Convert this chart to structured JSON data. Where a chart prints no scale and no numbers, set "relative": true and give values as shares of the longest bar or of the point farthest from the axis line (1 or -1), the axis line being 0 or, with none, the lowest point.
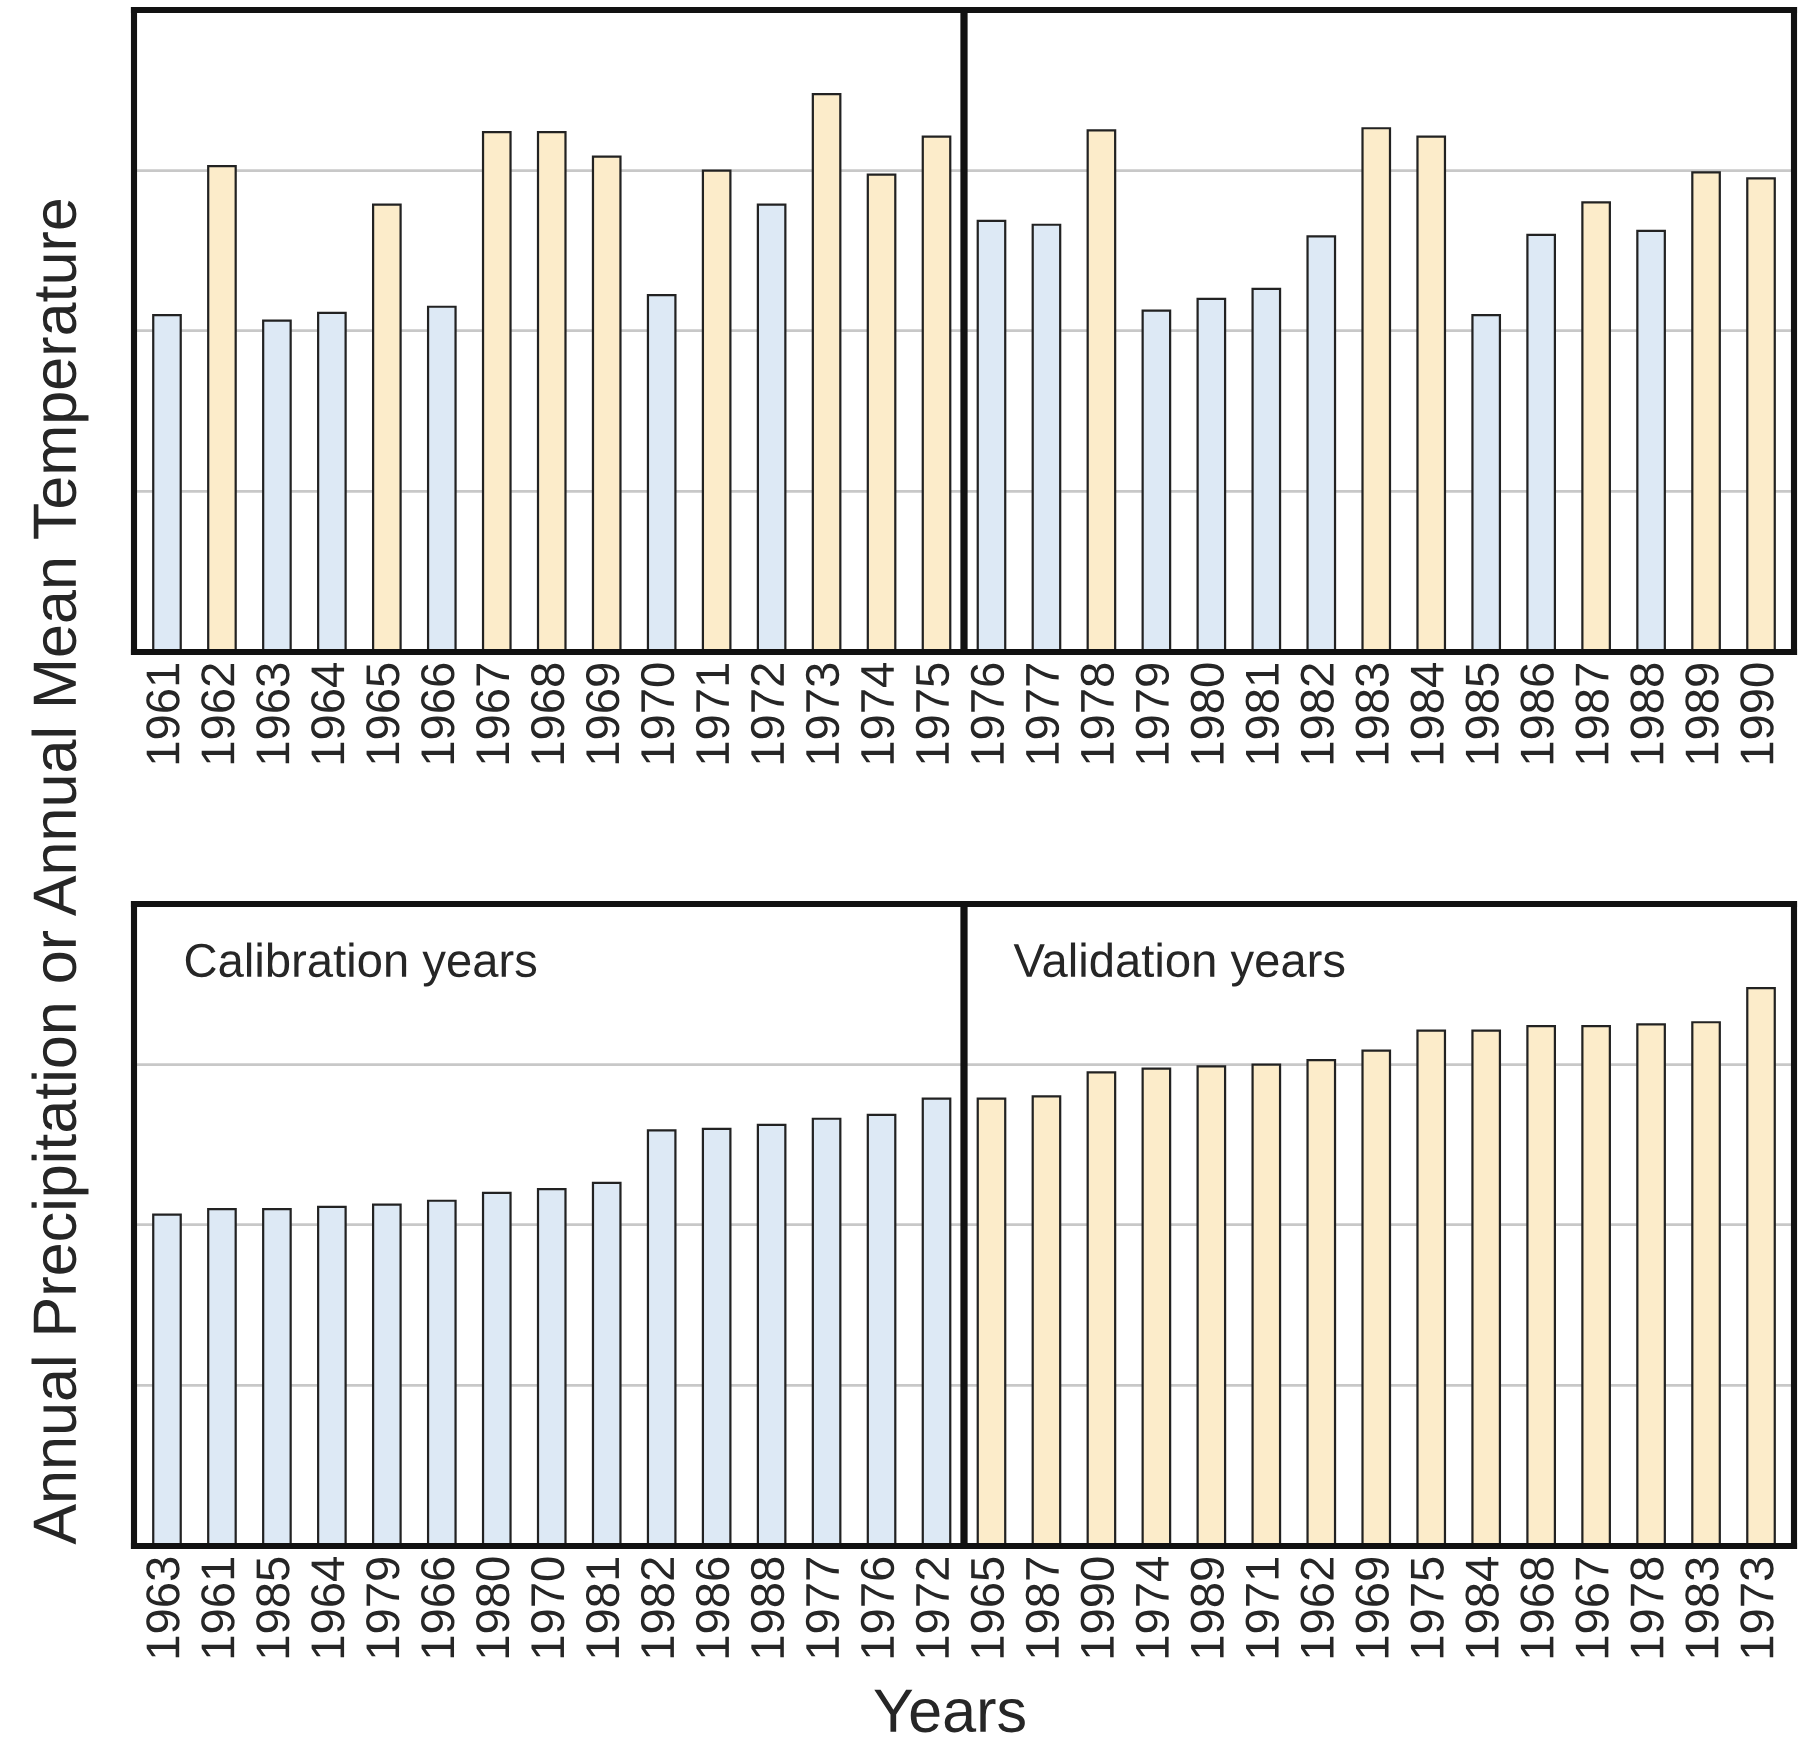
{
  "chart_data": [
    {
      "type": "bar",
      "relative": true,
      "ylabel": "Annual Precipitation or Annual Mean Temperature",
      "tick_labels": "x",
      "categories": [
        "1961",
        "1962",
        "1963",
        "1964",
        "1965",
        "1966",
        "1967",
        "1968",
        "1969",
        "1970",
        "1971",
        "1972",
        "1973",
        "1974",
        "1975",
        "1976",
        "1977",
        "1978",
        "1979",
        "1980",
        "1981",
        "1982",
        "1983",
        "1984",
        "1985",
        "1986",
        "1987",
        "1988",
        "1989",
        "1990"
      ],
      "values": [
        0.604,
        0.871,
        0.594,
        0.608,
        0.802,
        0.619,
        0.932,
        0.932,
        0.888,
        0.64,
        0.863,
        0.802,
        1,
        0.856,
        0.924,
        0.773,
        0.766,
        0.935,
        0.612,
        0.633,
        0.651,
        0.745,
        0.939,
        0.924,
        0.604,
        0.748,
        0.806,
        0.755,
        0.86,
        0.849
      ],
      "colors": [
        "#dde9f5",
        "#fcecca",
        "#dde9f5",
        "#dde9f5",
        "#fcecca",
        "#dde9f5",
        "#fcecca",
        "#fcecca",
        "#fcecca",
        "#dde9f5",
        "#fcecca",
        "#dde9f5",
        "#fcecca",
        "#fcecca",
        "#fcecca",
        "#dde9f5",
        "#dde9f5",
        "#fcecca",
        "#dde9f5",
        "#dde9f5",
        "#dde9f5",
        "#dde9f5",
        "#fcecca",
        "#fcecca",
        "#dde9f5",
        "#dde9f5",
        "#fcecca",
        "#dde9f5",
        "#fcecca",
        "#fcecca"
      ],
      "ref_lines": [
        {
          "axis": "y",
          "value": 0.288,
          "color": "#c8c8c8"
        },
        {
          "axis": "y",
          "value": 0.576,
          "color": "#c8c8c8"
        },
        {
          "axis": "y",
          "value": 0.863,
          "color": "#c8c8c8"
        }
      ]
    },
    {
      "type": "bar",
      "relative": true,
      "xlabel": "Years",
      "tick_labels": "x",
      "categories": [
        "1963",
        "1961",
        "1985",
        "1964",
        "1979",
        "1966",
        "1980",
        "1970",
        "1981",
        "1982",
        "1986",
        "1988",
        "1977",
        "1976",
        "1972",
        "1965",
        "1987",
        "1990",
        "1974",
        "1989",
        "1971",
        "1962",
        "1969",
        "1975",
        "1984",
        "1968",
        "1967",
        "1978",
        "1983",
        "1973"
      ],
      "values": [
        0.594,
        0.604,
        0.604,
        0.608,
        0.612,
        0.619,
        0.633,
        0.64,
        0.651,
        0.745,
        0.748,
        0.755,
        0.766,
        0.773,
        0.802,
        0.802,
        0.806,
        0.849,
        0.856,
        0.86,
        0.863,
        0.871,
        0.888,
        0.924,
        0.924,
        0.932,
        0.932,
        0.935,
        0.939,
        1
      ],
      "colors": [
        "#dde9f5",
        "#dde9f5",
        "#dde9f5",
        "#dde9f5",
        "#dde9f5",
        "#dde9f5",
        "#dde9f5",
        "#dde9f5",
        "#dde9f5",
        "#dde9f5",
        "#dde9f5",
        "#dde9f5",
        "#dde9f5",
        "#dde9f5",
        "#dde9f5",
        "#fcecca",
        "#fcecca",
        "#fcecca",
        "#fcecca",
        "#fcecca",
        "#fcecca",
        "#fcecca",
        "#fcecca",
        "#fcecca",
        "#fcecca",
        "#fcecca",
        "#fcecca",
        "#fcecca",
        "#fcecca",
        "#fcecca"
      ],
      "annotations": [
        "Calibration years",
        "Validation years"
      ],
      "ref_lines": [
        {
          "axis": "y",
          "value": 0.288,
          "color": "#c8c8c8"
        },
        {
          "axis": "y",
          "value": 0.576,
          "color": "#c8c8c8"
        },
        {
          "axis": "y",
          "value": 0.863,
          "color": "#c8c8c8"
        }
      ]
    }
  ]
}
